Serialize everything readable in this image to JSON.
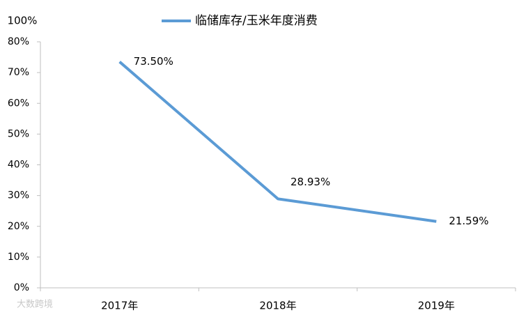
{
  "chart_data": {
    "type": "line",
    "annotation": "100%",
    "watermark": "大数跨境",
    "categories": [
      "2017年",
      "2018年",
      "2019年"
    ],
    "series": [
      {
        "name": "临储库存/玉米年度消费",
        "color": "#5b9bd5",
        "values": [
          73.5,
          28.93,
          21.59
        ],
        "value_labels": [
          "73.50%",
          "28.93%",
          "21.59%"
        ]
      }
    ],
    "ylim": [
      0,
      80
    ],
    "yticks": [
      {
        "value": 0,
        "label": "0%"
      },
      {
        "value": 10,
        "label": "10%"
      },
      {
        "value": 20,
        "label": "20%"
      },
      {
        "value": 30,
        "label": "30%"
      },
      {
        "value": 40,
        "label": "40%"
      },
      {
        "value": 50,
        "label": "50%"
      },
      {
        "value": 60,
        "label": "60%"
      },
      {
        "value": 70,
        "label": "70%"
      },
      {
        "value": 80,
        "label": "80%"
      }
    ],
    "legend": "top"
  }
}
